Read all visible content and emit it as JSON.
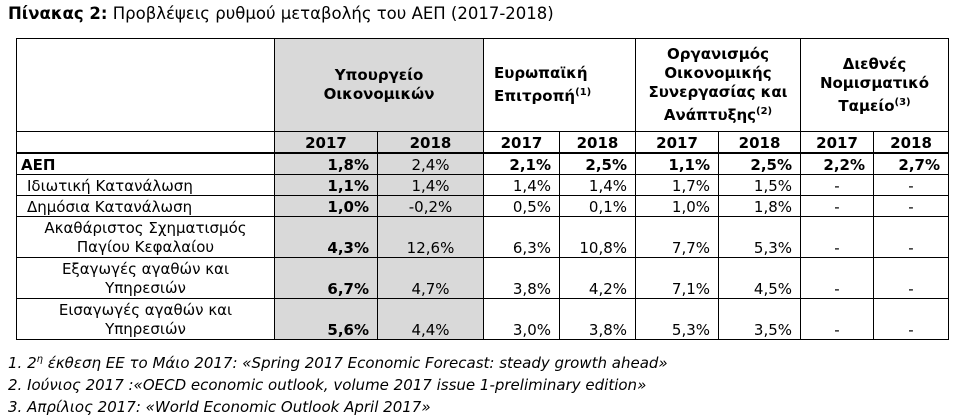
{
  "title": {
    "prefix": "Πίνακας 2:",
    "text": "Προβλέψεις ρυθμού μεταβολής του ΑΕΠ (2017-2018)"
  },
  "table": {
    "groups": [
      {
        "line1": "Υπουργείο",
        "line2": "Οικονομικών",
        "line3": "",
        "line4": "",
        "sup": ""
      },
      {
        "line1": "Ευρωπαϊκή",
        "line2": "Επιτροπή",
        "line3": "",
        "line4": "",
        "sup": "(1)"
      },
      {
        "line1": "Οργανισμός",
        "line2": "Οικονομικής",
        "line3": "Συνεργασίας και",
        "line4": "Ανάπτυξης",
        "sup": "(2)"
      },
      {
        "line1": "Διεθνές",
        "line2": "Νομισματικό",
        "line3": "Ταμείο",
        "line4": "",
        "sup": "(3)"
      }
    ],
    "years": [
      "2017",
      "2018",
      "2017",
      "2018",
      "2017",
      "2018",
      "2017",
      "2018"
    ],
    "rows": [
      {
        "label": "ΑΕΠ",
        "label2": "",
        "values": [
          "1,8%",
          "2,4%",
          "2,1%",
          "2,5%",
          "1,1%",
          "2,5%",
          "2,2%",
          "2,7%"
        ]
      },
      {
        "label": "Ιδιωτική Κατανάλωση",
        "label2": "",
        "values": [
          "1,1%",
          "1,4%",
          "1,4%",
          "1,4%",
          "1,7%",
          "1,5%",
          "-",
          "-"
        ]
      },
      {
        "label": "Δημόσια Κατανάλωση",
        "label2": "",
        "values": [
          "1,0%",
          "-0,2%",
          "0,5%",
          "0,1%",
          "1,0%",
          "1,8%",
          "-",
          "-"
        ]
      },
      {
        "label": "Ακαθάριστος Σχηματισμός",
        "label2": "Παγίου Κεφαλαίου",
        "values": [
          "4,3%",
          "12,6%",
          "6,3%",
          "10,8%",
          "7,7%",
          "5,3%",
          "-",
          "-"
        ]
      },
      {
        "label": "Εξαγωγές αγαθών και",
        "label2": "Υπηρεσιών",
        "values": [
          "6,7%",
          "4,7%",
          "3,8%",
          "4,2%",
          "7,1%",
          "4,5%",
          "-",
          "-"
        ]
      },
      {
        "label": "Εισαγωγές αγαθών και",
        "label2": "Υπηρεσιών",
        "values": [
          "5,6%",
          "4,4%",
          "3,0%",
          "3,8%",
          "5,3%",
          "3,5%",
          "-",
          "-"
        ]
      }
    ]
  },
  "notes": {
    "n1_prefix": "1. 2",
    "n1_sup": "η",
    "n1_text": " έκθεση ΕΕ το Μάιο 2017: «Spring 2017 Economic Forecast: steady growth ahead»",
    "n2": "2. Ιούνιος 2017 :«OECD economic outlook, volume 2017 issue 1-preliminary edition»",
    "n3": "3.  Απρίλιος 2017: «World Economic Outlook  April 2017»"
  }
}
